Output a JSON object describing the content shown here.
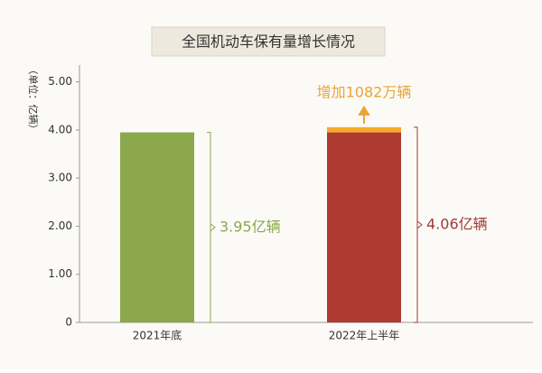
{
  "chart_data": {
    "type": "stacked_bar",
    "title": "全国机动车保有量增长情况",
    "y_label": "（单位：亿辆）",
    "categories": [
      "2021年底",
      "2022年上半年"
    ],
    "series": [
      {
        "colors": [
          "#8ba84c",
          "#ae3a30"
        ],
        "values": [
          3.95,
          3.95
        ]
      },
      {
        "color": "#f6aa2b",
        "values": [
          null,
          0.1082
        ]
      }
    ],
    "annotations": [
      "增加1082万辆",
      "3.95亿辆",
      "4.06亿辆"
    ],
    "annotation_colors": [
      "#e9a534",
      "#8ba84c",
      "#a13b35"
    ],
    "ylim": [
      0,
      5.35
    ],
    "yticks": [
      0,
      {
        "value": 1,
        "label": "1.00"
      },
      {
        "value": 2,
        "label": "2.00"
      },
      {
        "value": 3,
        "label": "3.00"
      },
      {
        "value": 4,
        "label": "4.00"
      },
      {
        "value": 5,
        "label": "5.00"
      }
    ]
  }
}
